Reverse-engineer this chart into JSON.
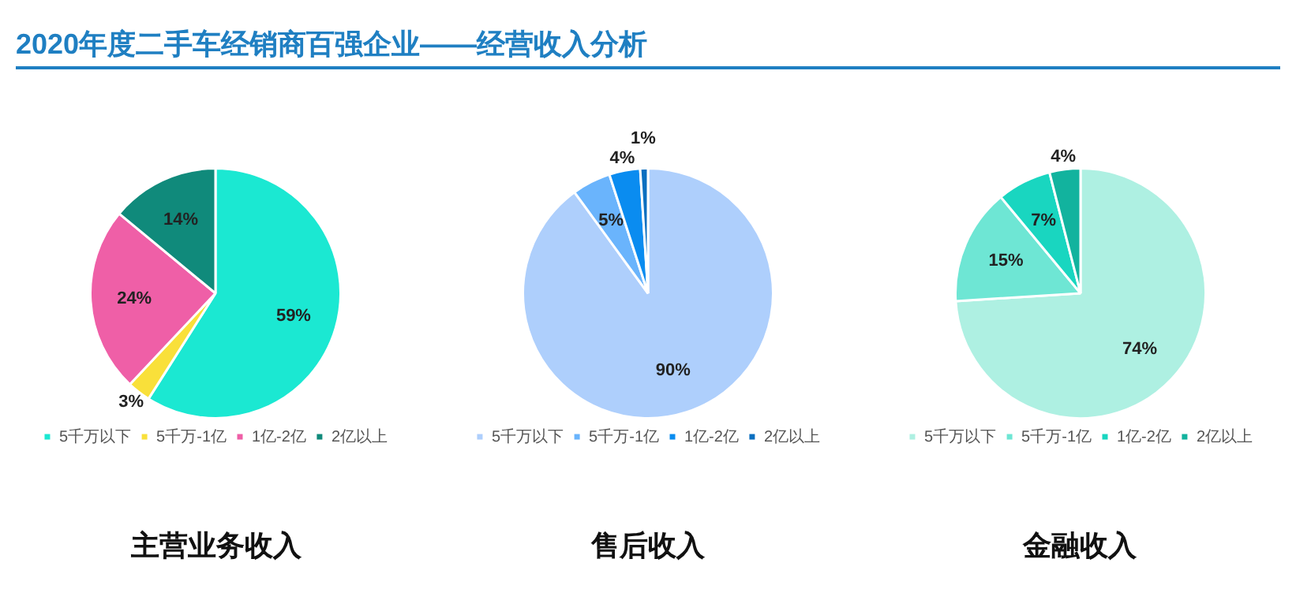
{
  "chart_data": [
    {
      "type": "other",
      "title": "2020年度二手车经销商百强企业——经营收入分析"
    },
    {
      "type": "pie",
      "title": "主营业务收入",
      "categories": [
        "5千万以下",
        "5千万-1亿",
        "1亿-2亿",
        "2亿以上"
      ],
      "values": [
        59,
        3,
        24,
        14
      ],
      "value_labels": [
        "59%",
        "3%",
        "24%",
        "14%"
      ],
      "colors": [
        "#1be8d2",
        "#f9e03a",
        "#ef5fa7",
        "#108a7b"
      ],
      "legend": "bottom"
    },
    {
      "type": "pie",
      "title": "售后收入",
      "categories": [
        "5千万以下",
        "5千万-1亿",
        "1亿-2亿",
        "2亿以上"
      ],
      "values": [
        90,
        5,
        4,
        1
      ],
      "value_labels": [
        "90%",
        "5%",
        "4%",
        "1%"
      ],
      "colors": [
        "#aecffc",
        "#6ab4fc",
        "#0a8cf0",
        "#0b6fc0"
      ],
      "legend": "bottom"
    },
    {
      "type": "pie",
      "title": "金融收入",
      "categories": [
        "5千万以下",
        "5千万-1亿",
        "1亿-2亿",
        "2亿以上"
      ],
      "values": [
        74,
        15,
        7,
        4
      ],
      "value_labels": [
        "74%",
        "15%",
        "7%",
        "4%"
      ],
      "colors": [
        "#aef0e2",
        "#6ee6d4",
        "#19d6c0",
        "#12b39e"
      ],
      "legend": "bottom"
    }
  ]
}
